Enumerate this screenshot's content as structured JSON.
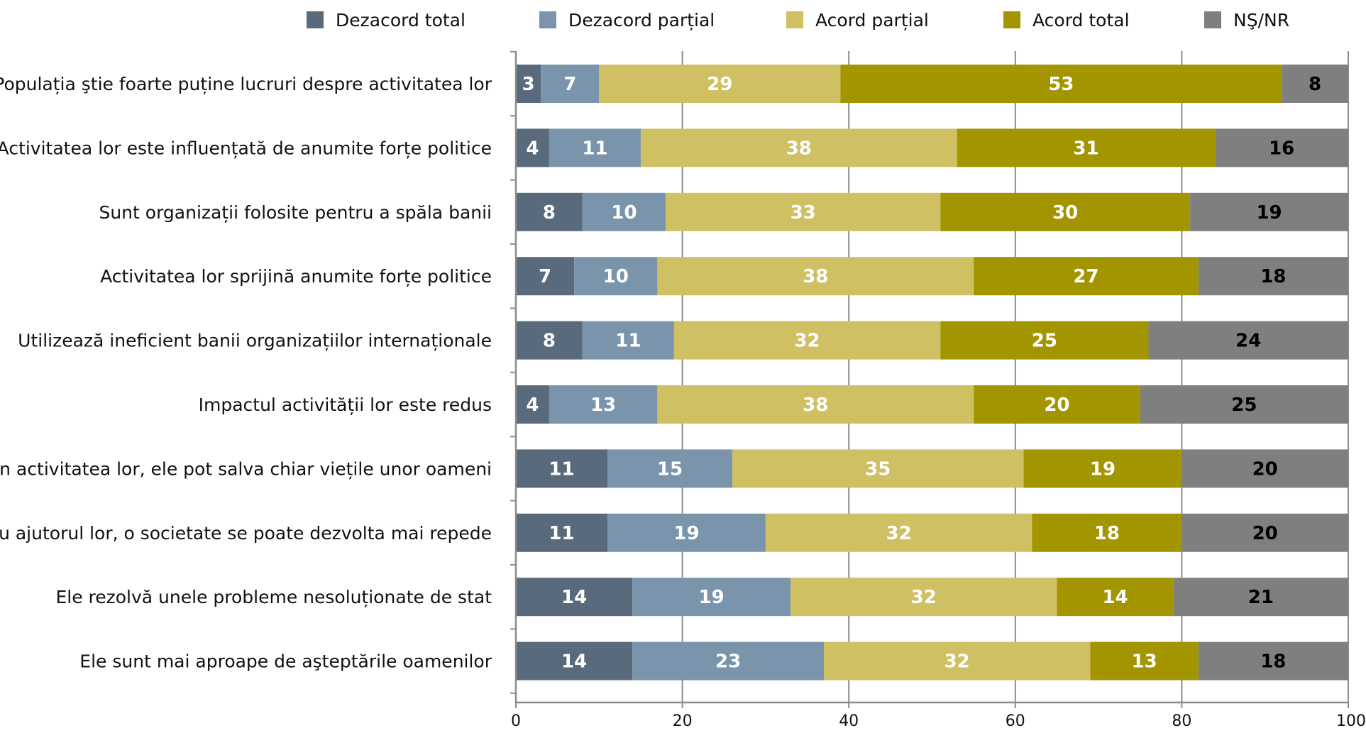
{
  "chart_data": {
    "type": "bar",
    "orientation": "horizontal",
    "stacked": true,
    "categories": [
      "Populația ştie foarte puține lucruri despre activitatea lor",
      "Activitatea lor este influențată de anumite forțe politice",
      "Sunt organizații folosite pentru a spăla banii",
      "Activitatea lor sprijină anumite forțe politice",
      "Utilizează ineficient banii organizațiilor internaționale",
      "Impactul activității lor este redus",
      "Prin activitatea lor, ele pot salva chiar viețile unor oameni",
      "Cu ajutorul lor, o societate se poate dezvolta mai repede",
      "Ele rezolvă unele probleme nesoluționate de stat",
      "Ele sunt mai aproape de aşteptările oamenilor"
    ],
    "series": [
      {
        "name": "Dezacord total",
        "color": "#586a7c",
        "label_color": "#ffffff",
        "values": [
          3,
          4,
          8,
          7,
          8,
          4,
          11,
          11,
          14,
          14
        ]
      },
      {
        "name": "Dezacord parțial",
        "color": "#7a95ab",
        "label_color": "#ffffff",
        "values": [
          7,
          11,
          10,
          10,
          11,
          13,
          15,
          19,
          19,
          23
        ]
      },
      {
        "name": "Acord parțial",
        "color": "#cfc064",
        "label_color": "#ffffff",
        "values": [
          29,
          38,
          33,
          38,
          32,
          38,
          35,
          32,
          32,
          32
        ]
      },
      {
        "name": "Acord total",
        "color": "#a39500",
        "label_color": "#ffffff",
        "values": [
          53,
          31,
          30,
          27,
          25,
          20,
          19,
          18,
          14,
          13
        ]
      },
      {
        "name": "NŞ/NR",
        "color": "#7f7f7f",
        "label_color": "#000000",
        "values": [
          8,
          16,
          19,
          18,
          24,
          25,
          20,
          20,
          21,
          18
        ]
      }
    ],
    "xlim": [
      0,
      100
    ],
    "xticks": [
      0,
      20,
      40,
      60,
      80,
      100
    ],
    "grid": true,
    "legend": "top",
    "title": "",
    "xlabel": "",
    "ylabel": ""
  }
}
